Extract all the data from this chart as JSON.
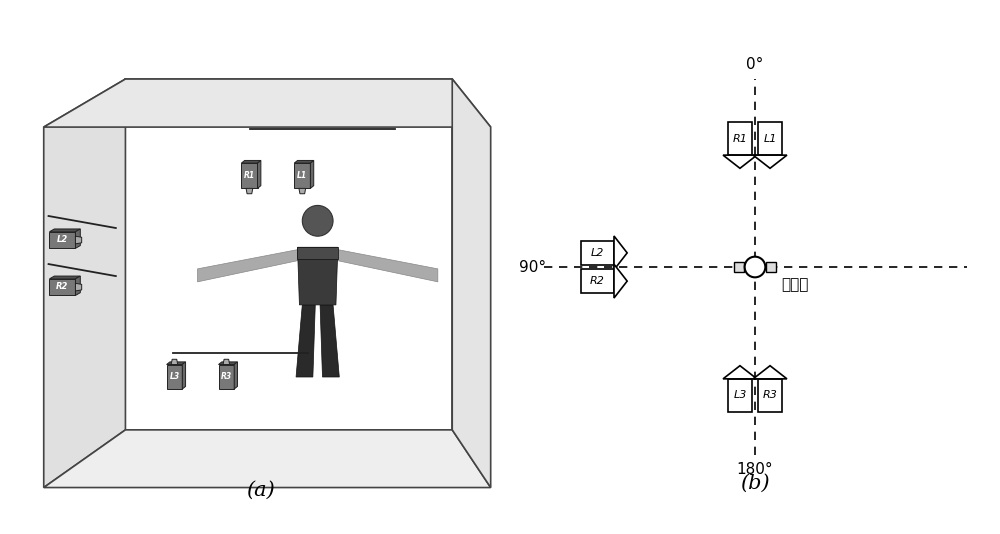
{
  "bg_color": "#ffffff",
  "fig_width": 10.0,
  "fig_height": 5.34,
  "label_a": "(a)",
  "label_b": "(b)",
  "angle_0": "0°",
  "angle_90": "90°",
  "angle_180": "180°",
  "subject_label": "被测者",
  "cam_gray": "#888888",
  "cam_dark": "#555555",
  "cam_light": "#aaaaaa",
  "line_color": "#222222"
}
